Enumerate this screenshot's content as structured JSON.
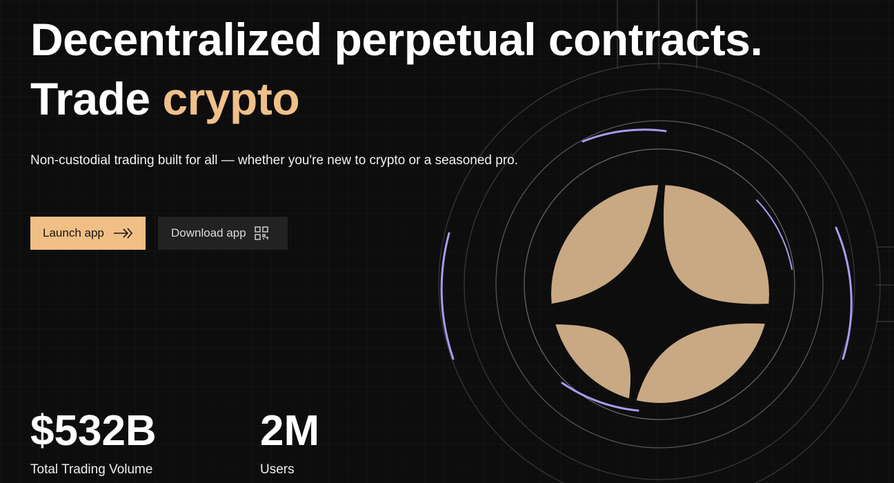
{
  "hero": {
    "title_line1": "Decentralized perpetual contracts.",
    "title_line2_prefix": "Trade ",
    "title_line2_accent": "crypto",
    "subtitle": "Non-custodial trading built for all — whether you're new to crypto or a seasoned pro."
  },
  "buttons": {
    "launch": {
      "label": "Launch app",
      "icon": "double-arrow-right-icon"
    },
    "download": {
      "label": "Download app",
      "icon": "qr-code-icon"
    }
  },
  "stats": [
    {
      "value": "$532B",
      "label": "Total Trading Volume"
    },
    {
      "value": "2M",
      "label": "Users"
    }
  ],
  "colors": {
    "accent": "#f0c08a",
    "button": "#efbf86",
    "coin": "#c9a984",
    "ring_glow": "#a99cf0",
    "background": "#0e0d0e"
  }
}
